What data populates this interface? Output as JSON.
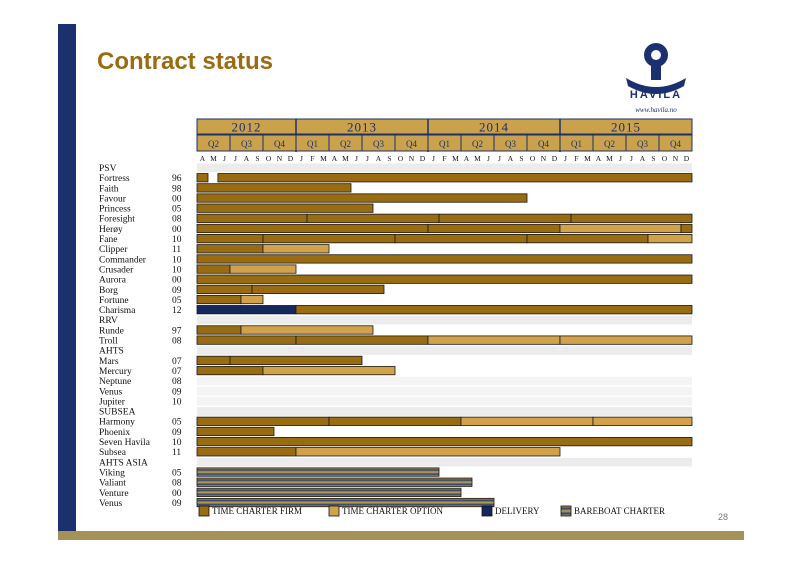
{
  "title": "Contract status",
  "page_number": "28",
  "logo": {
    "word": "HAVILA",
    "url": "www.havila.no"
  },
  "colors": {
    "brand_navy": "#1c2f6e",
    "title_gold": "#9a6c12",
    "firm": "#9a6c12",
    "option": "#d2a24a",
    "delivery": "#14285e",
    "bareboat_a": "#2b4272",
    "bareboat_b": "#c9a24b",
    "header_fill": "#c9a24b",
    "band": "#ececec"
  },
  "chart_data": {
    "type": "gantt",
    "years": [
      "2012",
      "2013",
      "2014",
      "2015"
    ],
    "quarters": [
      {
        "label": "Q2",
        "year": "2012"
      },
      {
        "label": "Q3",
        "year": "2012"
      },
      {
        "label": "Q4",
        "year": "2012"
      },
      {
        "label": "Q1",
        "year": "2013"
      },
      {
        "label": "Q2",
        "year": "2013"
      },
      {
        "label": "Q3",
        "year": "2013"
      },
      {
        "label": "Q4",
        "year": "2013"
      },
      {
        "label": "Q1",
        "year": "2014"
      },
      {
        "label": "Q2",
        "year": "2014"
      },
      {
        "label": "Q3",
        "year": "2014"
      },
      {
        "label": "Q4",
        "year": "2014"
      },
      {
        "label": "Q1",
        "year": "2015"
      },
      {
        "label": "Q2",
        "year": "2015"
      },
      {
        "label": "Q3",
        "year": "2015"
      },
      {
        "label": "Q4",
        "year": "2015"
      }
    ],
    "months": [
      "A",
      "M",
      "J",
      "J",
      "A",
      "S",
      "O",
      "N",
      "D",
      "J",
      "F",
      "M",
      "A",
      "M",
      "J",
      "J",
      "A",
      "S",
      "O",
      "N",
      "D",
      "J",
      "F",
      "M",
      "A",
      "M",
      "J",
      "J",
      "A",
      "S",
      "O",
      "N",
      "D",
      "J",
      "F",
      "M",
      "A",
      "M",
      "J",
      "J",
      "A",
      "S",
      "O",
      "N",
      "D"
    ],
    "time_range": [
      "2012-04",
      "2015-12"
    ],
    "legend": [
      {
        "key": "firm",
        "label": "TIME CHARTER FIRM"
      },
      {
        "key": "option",
        "label": "TIME CHARTER OPTION"
      },
      {
        "key": "delivery",
        "label": "DELIVERY"
      },
      {
        "key": "bareboat",
        "label": "BAREBOAT CHARTER"
      }
    ],
    "rows": [
      {
        "group": "PSV"
      },
      {
        "name": "Fortress",
        "year": "96",
        "segments": [
          {
            "type": "firm",
            "start": 0,
            "end": 1
          },
          {
            "type": "firm",
            "start": 1.9,
            "end": 45
          }
        ]
      },
      {
        "name": "Faith",
        "year": "98",
        "segments": [
          {
            "type": "firm",
            "start": 0,
            "end": 14
          }
        ]
      },
      {
        "name": "Favour",
        "year": "00",
        "segments": [
          {
            "type": "firm",
            "start": 0,
            "end": 30
          }
        ]
      },
      {
        "name": "Princess",
        "year": "05",
        "segments": [
          {
            "type": "firm",
            "start": 0,
            "end": 16
          }
        ]
      },
      {
        "name": "Foresight",
        "year": "08",
        "segments": [
          {
            "type": "firm",
            "start": 0,
            "end": 10
          },
          {
            "type": "firm",
            "start": 10,
            "end": 22
          },
          {
            "type": "firm",
            "start": 22,
            "end": 34
          },
          {
            "type": "firm",
            "start": 34,
            "end": 45
          }
        ]
      },
      {
        "name": "Herøy",
        "year": "00",
        "segments": [
          {
            "type": "firm",
            "start": 0,
            "end": 21
          },
          {
            "type": "firm",
            "start": 21,
            "end": 33
          },
          {
            "type": "option",
            "start": 33,
            "end": 44
          },
          {
            "type": "firm",
            "start": 44,
            "end": 45
          }
        ]
      },
      {
        "name": "Fane",
        "year": "10",
        "segments": [
          {
            "type": "firm",
            "start": 0,
            "end": 6
          },
          {
            "type": "firm",
            "start": 6,
            "end": 18
          },
          {
            "type": "firm",
            "start": 18,
            "end": 30
          },
          {
            "type": "firm",
            "start": 30,
            "end": 41
          },
          {
            "type": "option",
            "start": 41,
            "end": 45
          }
        ]
      },
      {
        "name": "Clipper",
        "year": "11",
        "segments": [
          {
            "type": "firm",
            "start": 0,
            "end": 6
          },
          {
            "type": "option",
            "start": 6,
            "end": 12
          }
        ]
      },
      {
        "name": "Commander",
        "year": "10",
        "segments": [
          {
            "type": "firm",
            "start": 0,
            "end": 45
          }
        ]
      },
      {
        "name": "Crusader",
        "year": "10",
        "segments": [
          {
            "type": "firm",
            "start": 0,
            "end": 3
          },
          {
            "type": "option",
            "start": 3,
            "end": 9
          }
        ]
      },
      {
        "name": "Aurora",
        "year": "00",
        "segments": [
          {
            "type": "firm",
            "start": 0,
            "end": 45
          }
        ]
      },
      {
        "name": "Borg",
        "year": "09",
        "segments": [
          {
            "type": "firm",
            "start": 0,
            "end": 5
          },
          {
            "type": "firm",
            "start": 5,
            "end": 17
          }
        ]
      },
      {
        "name": "Fortune",
        "year": "05",
        "segments": [
          {
            "type": "firm",
            "start": 0,
            "end": 4
          },
          {
            "type": "option",
            "start": 4,
            "end": 6
          }
        ]
      },
      {
        "name": "Charisma",
        "year": "12",
        "segments": [
          {
            "type": "delivery",
            "start": 0,
            "end": 9
          },
          {
            "type": "firm",
            "start": 9,
            "end": 45
          }
        ]
      },
      {
        "group": "RRV"
      },
      {
        "name": "Runde",
        "year": "97",
        "segments": [
          {
            "type": "firm",
            "start": 0,
            "end": 4
          },
          {
            "type": "option",
            "start": 4,
            "end": 16
          }
        ]
      },
      {
        "name": "Troll",
        "year": "08",
        "segments": [
          {
            "type": "firm",
            "start": 0,
            "end": 9
          },
          {
            "type": "firm",
            "start": 9,
            "end": 21
          },
          {
            "type": "option",
            "start": 21,
            "end": 33
          },
          {
            "type": "option",
            "start": 33,
            "end": 45
          }
        ]
      },
      {
        "group": "AHTS"
      },
      {
        "name": "Mars",
        "year": "07",
        "segments": [
          {
            "type": "firm",
            "start": 0,
            "end": 3
          },
          {
            "type": "firm",
            "start": 3,
            "end": 15
          }
        ]
      },
      {
        "name": "Mercury",
        "year": "07",
        "segments": [
          {
            "type": "firm",
            "start": 0,
            "end": 6
          },
          {
            "type": "option",
            "start": 6,
            "end": 18
          }
        ]
      },
      {
        "name": "Neptune",
        "year": "08",
        "segments": []
      },
      {
        "name": "Venus",
        "year": "09",
        "segments": []
      },
      {
        "name": "Jupiter",
        "year": "10",
        "segments": []
      },
      {
        "group": "SUBSEA"
      },
      {
        "name": "Harmony",
        "year": "05",
        "segments": [
          {
            "type": "firm",
            "start": 0,
            "end": 12
          },
          {
            "type": "firm",
            "start": 12,
            "end": 24
          },
          {
            "type": "option",
            "start": 24,
            "end": 36
          },
          {
            "type": "option",
            "start": 36,
            "end": 45
          }
        ]
      },
      {
        "name": "Phoenix",
        "year": "09",
        "segments": [
          {
            "type": "firm",
            "start": 0,
            "end": 7
          }
        ]
      },
      {
        "name": "Seven Havila",
        "year": "10",
        "segments": [
          {
            "type": "firm",
            "start": 0,
            "end": 45
          }
        ]
      },
      {
        "name": "Subsea",
        "year": "11",
        "segments": [
          {
            "type": "firm",
            "start": 0,
            "end": 9
          },
          {
            "type": "option",
            "start": 9,
            "end": 33
          }
        ]
      },
      {
        "group": "AHTS ASIA"
      },
      {
        "name": "Viking",
        "year": "05",
        "segments": [
          {
            "type": "bareboat",
            "start": 0,
            "end": 22
          }
        ]
      },
      {
        "name": "Valiant",
        "year": "08",
        "segments": [
          {
            "type": "bareboat",
            "start": 0,
            "end": 25
          }
        ]
      },
      {
        "name": "Venture",
        "year": "00",
        "segments": [
          {
            "type": "bareboat",
            "start": 0,
            "end": 24
          }
        ]
      },
      {
        "name": "Venus",
        "year": "09",
        "segments": [
          {
            "type": "bareboat",
            "start": 0,
            "end": 27
          }
        ]
      }
    ]
  }
}
